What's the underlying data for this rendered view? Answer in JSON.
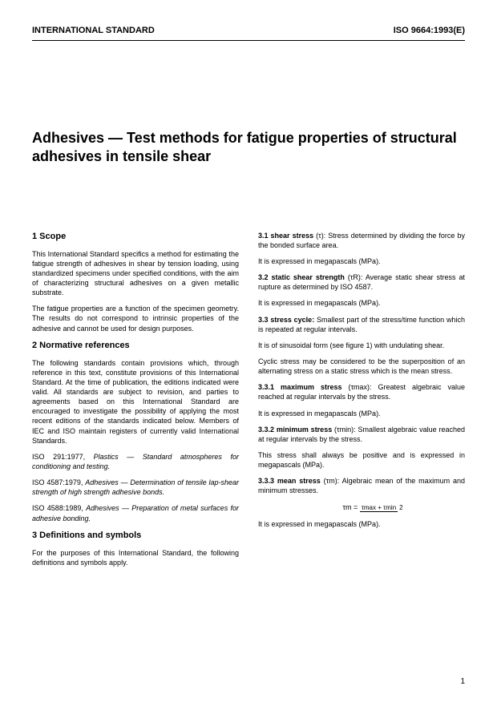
{
  "header": {
    "left": "INTERNATIONAL STANDARD",
    "right": "ISO 9664:1993(E)"
  },
  "title": "Adhesives — Test methods for fatigue properties of structural adhesives in tensile shear",
  "left_column": {
    "s1_heading": "1   Scope",
    "s1_p1": "This International Standard specifics a method for estimating the fatigue strength of adhesives in shear by tension loading, using standardized specimens under specified conditions, with the aim of characterizing structural adhesives on a given metallic substrate.",
    "s1_p2": "The fatigue properties are a function of the specimen geometry. The results do not correspond to intrinsic properties of the adhesive and cannot be used for design purposes.",
    "s2_heading": "2   Normative references",
    "s2_p1": "The following standards contain provisions which, through reference in this text, constitute provisions of this International Standard. At the time of publication, the editions indicated were valid. All standards are subject to revision, and parties to agreements based on this International Standard are encouraged to investigate the possibility of applying the most recent editions of the standards indicated below. Members of IEC and ISO maintain registers of currently valid International Standards.",
    "ref1_a": "ISO 291:1977, ",
    "ref1_b": "Plastics — Standard atmospheres for conditioning and testing.",
    "ref2_a": "ISO 4587:1979, ",
    "ref2_b": "Adhesives — Determination of tensile lap-shear strength of high strength adhesive bonds.",
    "ref3_a": "ISO 4588:1989, ",
    "ref3_b": "Adhesives — Preparation of metal surfaces for adhesive bonding.",
    "s3_heading": "3   Definitions and symbols",
    "s3_p1": "For the purposes of this International Standard, the following definitions and symbols apply."
  },
  "right_column": {
    "d31_label": "3.1   shear stress",
    "d31_sym": " (τ): ",
    "d31_txt": "Stress determined by dividing the force by the bonded surface area.",
    "unit_mpa": "It is expressed in megapascals (MPa).",
    "d32_label": "3.2   static shear strength",
    "d32_sym": " (τR): ",
    "d32_txt": "Average static shear stress at rupture as determined by ISO 4587.",
    "d33_label": "3.3   stress cycle:",
    "d33_txt": " Smallest part of the stress/time function which is repeated at regular intervals.",
    "d33_p2": "It is of sinusoidal form (see figure 1) with undulating shear.",
    "d33_p3": "Cyclic stress may be considered to be the superposition of an alternating stress on a static stress which is the mean stress.",
    "d331_label": "3.3.1   maximum stress",
    "d331_sym": " (τmax): ",
    "d331_txt": "Greatest algebraic value reached at regular intervals by the stress.",
    "d332_label": "3.3.2   minimum stress",
    "d332_sym": " (τmin): ",
    "d332_txt": "Smallest algebraic value reached at regular intervals by the stress.",
    "d332_p2": "This stress shall always be positive and is expressed in megapascals (MPa).",
    "d333_label": "3.3.3   mean stress",
    "d333_sym": " (τm): ",
    "d333_txt": "Algebraic mean of the maximum and minimum stresses.",
    "formula_lhs": "τm = ",
    "formula_num": "τmax + τmin",
    "formula_den": "2"
  },
  "page_number": "1"
}
